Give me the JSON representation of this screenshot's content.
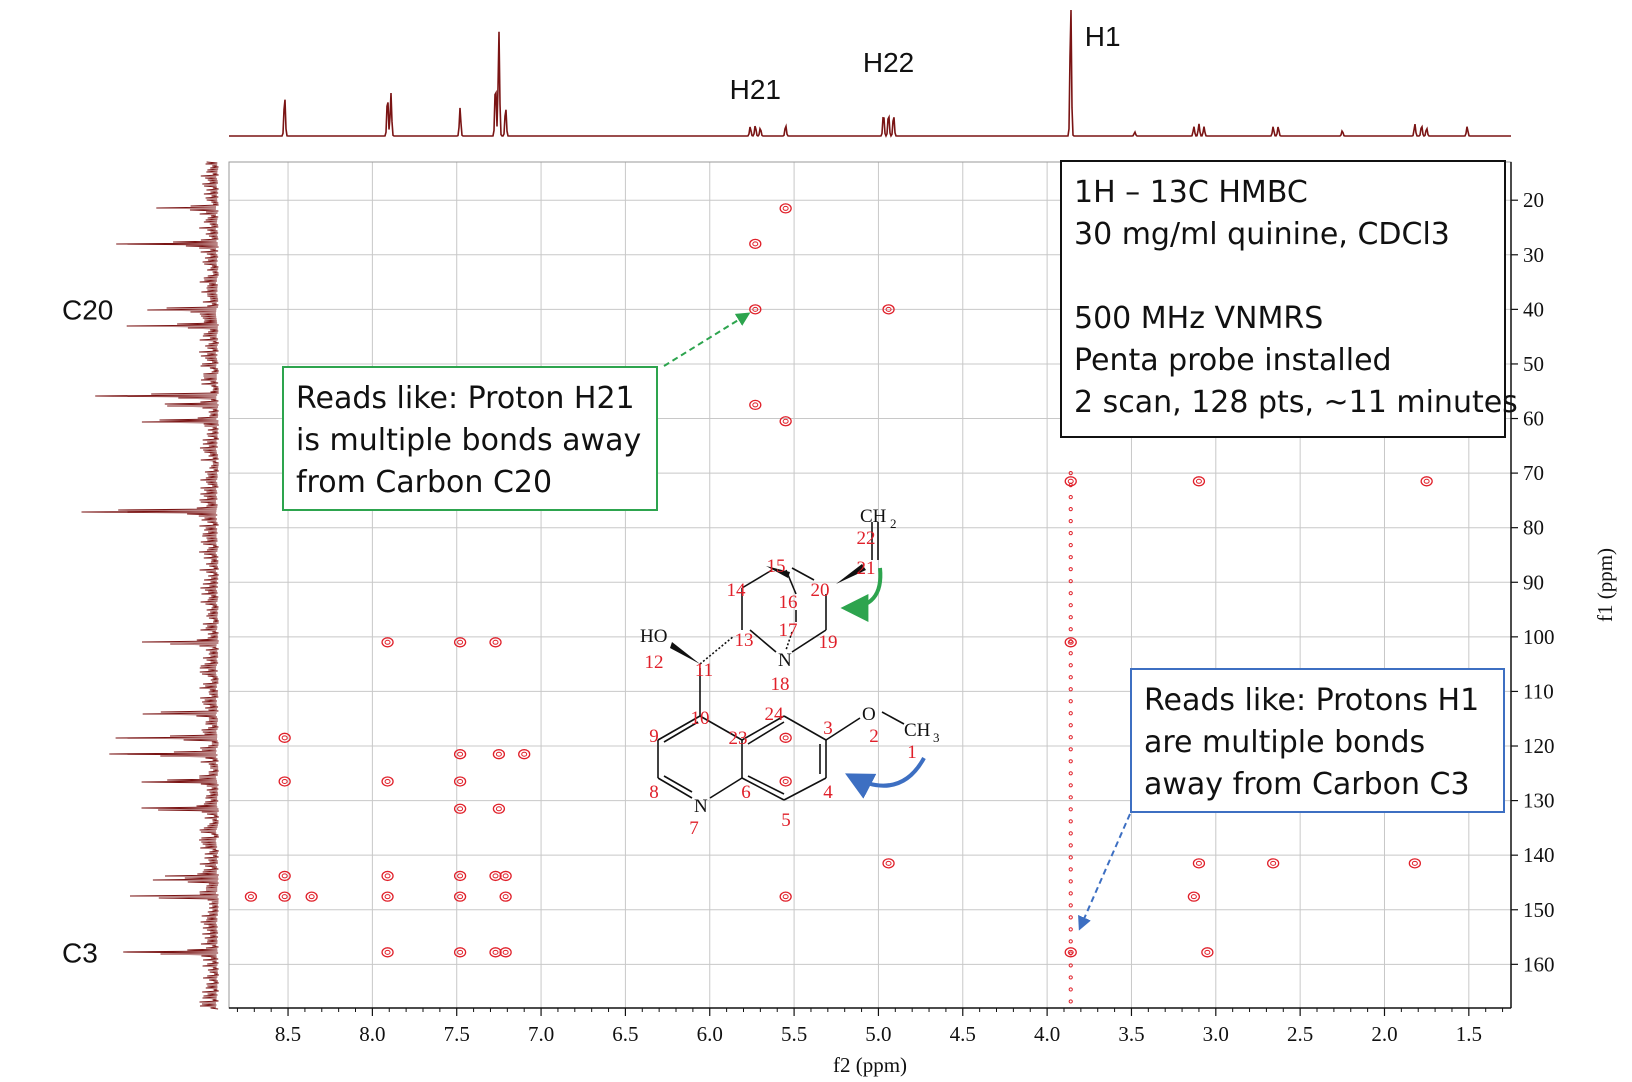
{
  "chart_data": {
    "type": "heatmap",
    "subtype": "2D NMR HMBC contour plot",
    "xlabel": "f2 (ppm)",
    "ylabel": "f1 (ppm)",
    "xlim": [
      8.85,
      1.25
    ],
    "ylim": [
      168,
      13
    ],
    "x_ticks": [
      8.5,
      8.0,
      7.5,
      7.0,
      6.5,
      6.0,
      5.5,
      5.0,
      4.5,
      4.0,
      3.5,
      3.0,
      2.5,
      2.0,
      1.5
    ],
    "x_tick_labels": [
      "8.5",
      "8.0",
      "7.5",
      "7.0",
      "6.5",
      "6.0",
      "5.5",
      "5.0",
      "4.5",
      "4.0",
      "3.5",
      "3.0",
      "2.5",
      "2.0",
      "1.5"
    ],
    "y_ticks": [
      20,
      30,
      40,
      50,
      60,
      70,
      80,
      90,
      100,
      110,
      120,
      130,
      140,
      150,
      160
    ],
    "y_tick_labels": [
      "20",
      "30",
      "40",
      "50",
      "60",
      "70",
      "80",
      "90",
      "100",
      "110",
      "120",
      "130",
      "140",
      "150",
      "160"
    ],
    "grid": true,
    "top_projection_peaks": [
      {
        "x": 8.52,
        "h": 0.3
      },
      {
        "x": 7.91,
        "h": 0.3
      },
      {
        "x": 7.89,
        "h": 0.32
      },
      {
        "x": 7.48,
        "h": 0.21
      },
      {
        "x": 7.27,
        "h": 0.4
      },
      {
        "x": 7.25,
        "h": 0.78
      },
      {
        "x": 7.21,
        "h": 0.22
      },
      {
        "x": 5.76,
        "h": 0.07
      },
      {
        "x": 5.73,
        "h": 0.08
      },
      {
        "x": 5.7,
        "h": 0.06
      },
      {
        "x": 5.55,
        "h": 0.08
      },
      {
        "x": 4.97,
        "h": 0.17
      },
      {
        "x": 4.94,
        "h": 0.17
      },
      {
        "x": 4.91,
        "h": 0.16
      },
      {
        "x": 3.86,
        "h": 1.0
      },
      {
        "x": 3.48,
        "h": 0.03
      },
      {
        "x": 3.13,
        "h": 0.07
      },
      {
        "x": 3.1,
        "h": 0.09
      },
      {
        "x": 3.07,
        "h": 0.07
      },
      {
        "x": 2.66,
        "h": 0.07
      },
      {
        "x": 2.63,
        "h": 0.07
      },
      {
        "x": 2.25,
        "h": 0.04
      },
      {
        "x": 1.82,
        "h": 0.09
      },
      {
        "x": 1.78,
        "h": 0.08
      },
      {
        "x": 1.75,
        "h": 0.06
      },
      {
        "x": 1.51,
        "h": 0.07
      }
    ],
    "left_projection_peaks": [
      {
        "y": 21.5,
        "h": 0.3
      },
      {
        "y": 28.0,
        "h": 0.62
      },
      {
        "y": 40.0,
        "h": 0.4
      },
      {
        "y": 43.0,
        "h": 0.56
      },
      {
        "y": 55.8,
        "h": 0.74
      },
      {
        "y": 57.5,
        "h": 0.4
      },
      {
        "y": 60.5,
        "h": 0.54
      },
      {
        "y": 77.0,
        "h": 0.9
      },
      {
        "y": 101.0,
        "h": 0.48
      },
      {
        "y": 114.0,
        "h": 0.44
      },
      {
        "y": 118.5,
        "h": 0.6
      },
      {
        "y": 121.5,
        "h": 0.66
      },
      {
        "y": 126.5,
        "h": 0.46
      },
      {
        "y": 131.5,
        "h": 0.56
      },
      {
        "y": 143.8,
        "h": 0.3
      },
      {
        "y": 144.6,
        "h": 0.38
      },
      {
        "y": 147.6,
        "h": 0.59
      },
      {
        "y": 157.8,
        "h": 0.6
      }
    ],
    "cross_peaks": [
      {
        "x": 5.55,
        "y": 21.5
      },
      {
        "x": 5.73,
        "y": 28.0
      },
      {
        "x": 5.73,
        "y": 40.0
      },
      {
        "x": 4.94,
        "y": 40.0
      },
      {
        "x": 5.73,
        "y": 57.5
      },
      {
        "x": 5.55,
        "y": 60.5
      },
      {
        "x": 3.1,
        "y": 71.5
      },
      {
        "x": 1.75,
        "y": 71.5
      },
      {
        "x": 3.86,
        "y": 71.5
      },
      {
        "x": 7.91,
        "y": 101.0
      },
      {
        "x": 7.48,
        "y": 101.0
      },
      {
        "x": 7.27,
        "y": 101.0
      },
      {
        "x": 3.86,
        "y": 101.0
      },
      {
        "x": 8.52,
        "y": 118.5
      },
      {
        "x": 7.25,
        "y": 121.5
      },
      {
        "x": 7.1,
        "y": 121.5
      },
      {
        "x": 7.48,
        "y": 121.5
      },
      {
        "x": 5.55,
        "y": 118.5
      },
      {
        "x": 8.52,
        "y": 126.5
      },
      {
        "x": 7.91,
        "y": 126.5
      },
      {
        "x": 7.48,
        "y": 126.5
      },
      {
        "x": 5.55,
        "y": 126.5
      },
      {
        "x": 7.48,
        "y": 131.5
      },
      {
        "x": 7.25,
        "y": 131.5
      },
      {
        "x": 4.94,
        "y": 141.5
      },
      {
        "x": 3.1,
        "y": 141.5
      },
      {
        "x": 2.66,
        "y": 141.5
      },
      {
        "x": 1.82,
        "y": 141.5
      },
      {
        "x": 8.52,
        "y": 143.8
      },
      {
        "x": 7.91,
        "y": 143.8
      },
      {
        "x": 7.48,
        "y": 143.8
      },
      {
        "x": 7.27,
        "y": 143.8
      },
      {
        "x": 7.21,
        "y": 143.8
      },
      {
        "x": 8.72,
        "y": 147.6
      },
      {
        "x": 8.52,
        "y": 147.6
      },
      {
        "x": 8.36,
        "y": 147.6
      },
      {
        "x": 7.91,
        "y": 147.6
      },
      {
        "x": 7.48,
        "y": 147.6
      },
      {
        "x": 7.21,
        "y": 147.6
      },
      {
        "x": 5.55,
        "y": 147.6
      },
      {
        "x": 3.13,
        "y": 147.6
      },
      {
        "x": 7.91,
        "y": 157.8
      },
      {
        "x": 7.48,
        "y": 157.8
      },
      {
        "x": 7.27,
        "y": 157.8
      },
      {
        "x": 7.21,
        "y": 157.8
      },
      {
        "x": 3.86,
        "y": 157.8
      },
      {
        "x": 3.05,
        "y": 157.8
      }
    ],
    "noise_streak": {
      "x": 3.86,
      "y_from": 70,
      "y_to": 168
    },
    "peak_labels_top": [
      {
        "text": "H21",
        "x": 5.73
      },
      {
        "text": "H22",
        "x": 4.94
      },
      {
        "text": "H1",
        "x": 3.86
      }
    ],
    "peak_labels_left": [
      {
        "text": "C20",
        "y": 40.0
      },
      {
        "text": "C3",
        "y": 157.8
      }
    ]
  },
  "info_box": {
    "lines": [
      "1H – 13C HMBC",
      "30 mg/ml quinine, CDCl3",
      "",
      "500 MHz VNMRS",
      "Penta probe installed",
      "2 scan, 128 pts, ~11 minutes"
    ]
  },
  "annotation_green": {
    "lines": [
      "Reads like: Proton H21",
      "is multiple bonds away",
      "from Carbon C20"
    ],
    "target": {
      "x": 5.73,
      "y": 40.0
    }
  },
  "annotation_blue": {
    "lines": [
      "Reads like: Protons H1",
      "are multiple bonds",
      "away from Carbon C3"
    ],
    "target": {
      "x": 3.86,
      "y": 154.0
    }
  },
  "molecule": {
    "atom_numbers": [
      "1",
      "2",
      "3",
      "4",
      "5",
      "6",
      "7",
      "8",
      "9",
      "10",
      "11",
      "12",
      "13",
      "14",
      "15",
      "16",
      "17",
      "18",
      "19",
      "20",
      "21",
      "22",
      "23",
      "24"
    ],
    "labels": {
      "ch2": "CH",
      "ch2_sub": "2",
      "ch3": "CH",
      "ch3_sub": "3",
      "ho": "HO",
      "n_quin": "N",
      "n_bridge": "N",
      "o": "O"
    }
  },
  "colors": {
    "spectrum": "#7a1414",
    "contour": "#e0202a",
    "grid": "#c8c8c8",
    "green": "#2da44e",
    "blue": "#3d6fc2",
    "atom_number": "#e0202a"
  }
}
